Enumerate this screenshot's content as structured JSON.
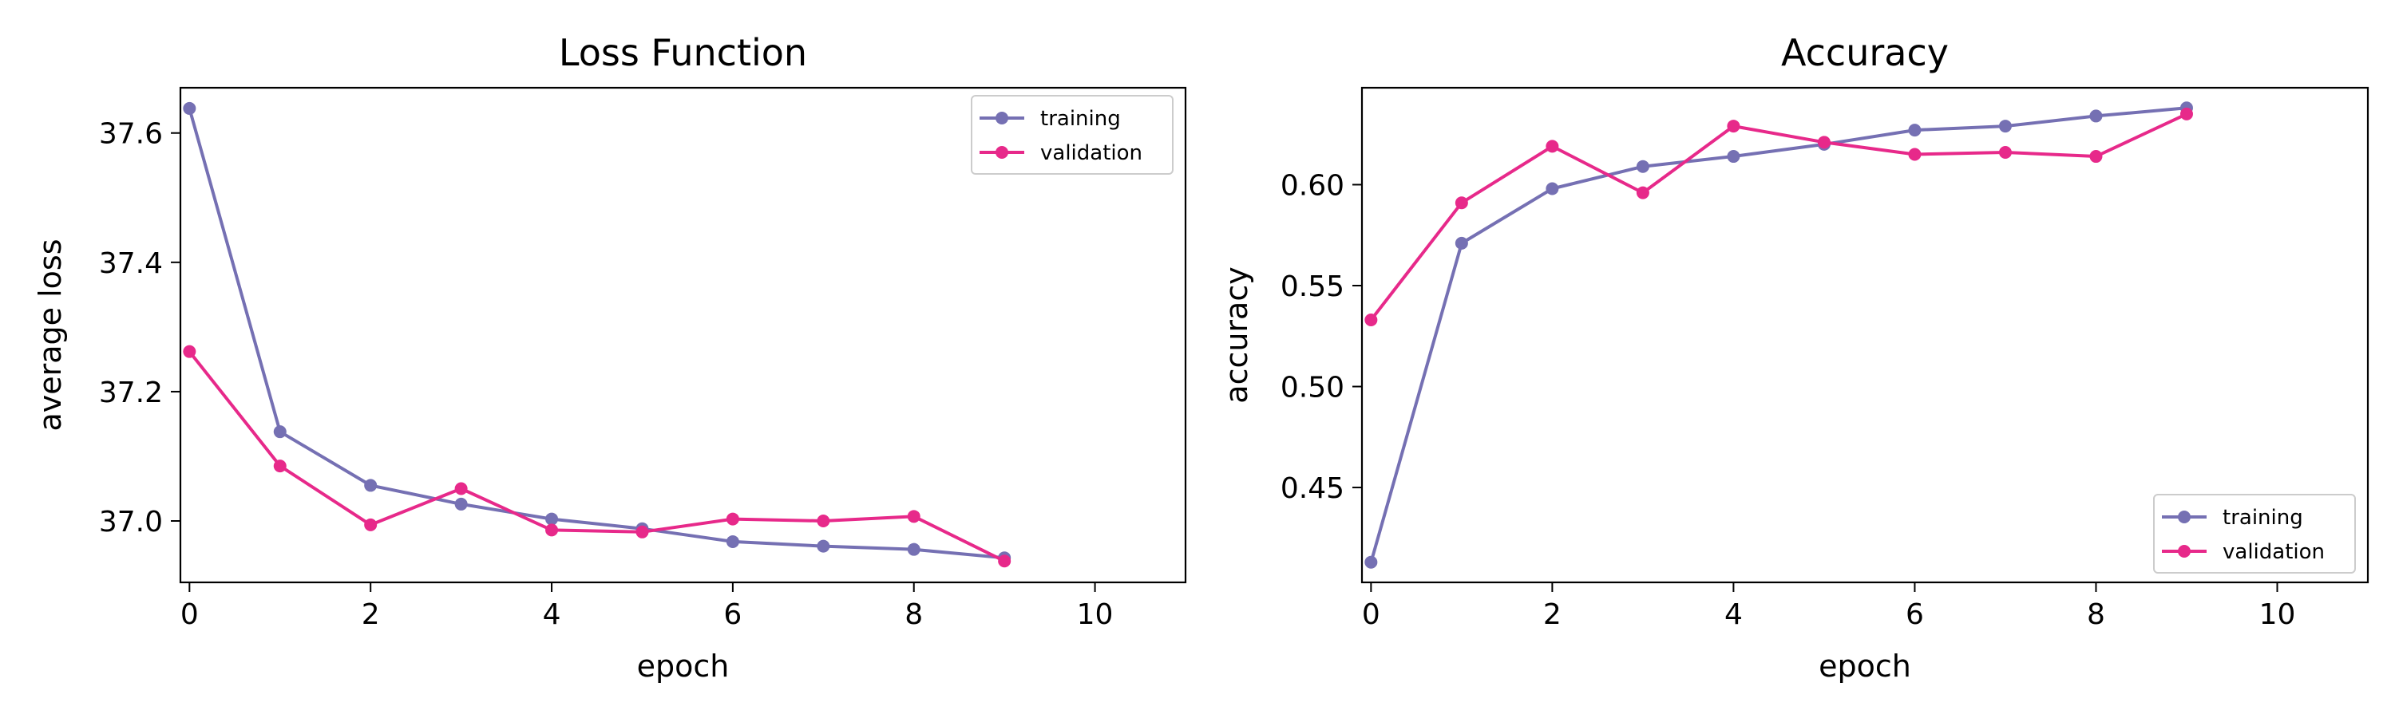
{
  "colors": {
    "training": "#7570b3",
    "validation": "#e7298a",
    "axis": "#000000",
    "background": "#ffffff"
  },
  "chart_data": [
    {
      "type": "line",
      "title": "Loss Function",
      "xlabel": "epoch",
      "ylabel": "average loss",
      "xlim": [
        -0.1,
        11
      ],
      "ylim": [
        36.905,
        37.67
      ],
      "xticks": [
        0,
        2,
        4,
        6,
        8,
        10
      ],
      "yticks": [
        37.0,
        37.2,
        37.4,
        37.6
      ],
      "xtick_labels": [
        "0",
        "2",
        "4",
        "6",
        "8",
        "10"
      ],
      "ytick_labels": [
        "37.0",
        "37.2",
        "37.4",
        "37.6"
      ],
      "grid": false,
      "legend_position": "upper-right",
      "x": [
        0,
        1,
        2,
        3,
        4,
        5,
        6,
        7,
        8,
        9
      ],
      "series": [
        {
          "name": "training",
          "color": "#7570b3",
          "values": [
            37.638,
            37.138,
            37.055,
            37.026,
            37.003,
            36.988,
            36.968,
            36.961,
            36.956,
            36.943
          ]
        },
        {
          "name": "validation",
          "color": "#e7298a",
          "values": [
            37.262,
            37.085,
            36.994,
            37.05,
            36.986,
            36.983,
            37.003,
            37.0,
            37.007,
            36.938
          ]
        }
      ]
    },
    {
      "type": "line",
      "title": "Accuracy",
      "xlabel": "epoch",
      "ylabel": "accuracy",
      "xlim": [
        -0.1,
        11
      ],
      "ylim": [
        0.403,
        0.648
      ],
      "xticks": [
        0,
        2,
        4,
        6,
        8,
        10
      ],
      "yticks": [
        0.45,
        0.5,
        0.55,
        0.6
      ],
      "xtick_labels": [
        "0",
        "2",
        "4",
        "6",
        "8",
        "10"
      ],
      "ytick_labels": [
        "0.45",
        "0.50",
        "0.55",
        "0.60"
      ],
      "grid": false,
      "legend_position": "lower-right",
      "x": [
        0,
        1,
        2,
        3,
        4,
        5,
        6,
        7,
        8,
        9
      ],
      "series": [
        {
          "name": "training",
          "color": "#7570b3",
          "values": [
            0.413,
            0.571,
            0.598,
            0.609,
            0.614,
            0.62,
            0.627,
            0.629,
            0.634,
            0.638
          ]
        },
        {
          "name": "validation",
          "color": "#e7298a",
          "values": [
            0.533,
            0.591,
            0.619,
            0.596,
            0.629,
            0.621,
            0.615,
            0.616,
            0.614,
            0.635
          ]
        }
      ]
    }
  ]
}
